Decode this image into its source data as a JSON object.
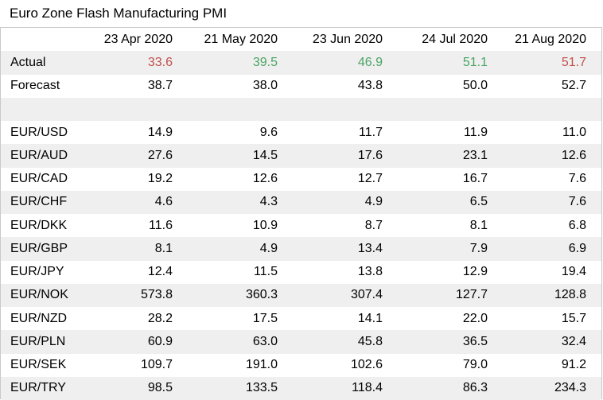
{
  "title": "Euro Zone Flash Manufacturing PMI",
  "colors": {
    "down": "#c0504d",
    "up": "#4aa564"
  },
  "chart_data": {
    "type": "table",
    "columns": [
      "23 Apr 2020",
      "21 May 2020",
      "23 Jun 2020",
      "24 Jul 2020",
      "21 Aug 2020"
    ],
    "actual": {
      "label": "Actual",
      "values": [
        "33.6",
        "39.5",
        "46.9",
        "51.1",
        "51.7"
      ],
      "colors": [
        "down",
        "up",
        "up",
        "up",
        "down"
      ]
    },
    "forecast": {
      "label": "Forecast",
      "values": [
        "38.7",
        "38.0",
        "43.8",
        "50.0",
        "52.7"
      ]
    },
    "pairs": [
      {
        "label": "EUR/USD",
        "values": [
          "14.9",
          "9.6",
          "11.7",
          "11.9",
          "11.0"
        ]
      },
      {
        "label": "EUR/AUD",
        "values": [
          "27.6",
          "14.5",
          "17.6",
          "23.1",
          "12.6"
        ]
      },
      {
        "label": "EUR/CAD",
        "values": [
          "19.2",
          "12.6",
          "12.7",
          "16.7",
          "7.6"
        ]
      },
      {
        "label": "EUR/CHF",
        "values": [
          "4.6",
          "4.3",
          "4.9",
          "6.5",
          "7.6"
        ]
      },
      {
        "label": "EUR/DKK",
        "values": [
          "11.6",
          "10.9",
          "8.7",
          "8.1",
          "6.8"
        ]
      },
      {
        "label": "EUR/GBP",
        "values": [
          "8.1",
          "4.9",
          "13.4",
          "7.9",
          "6.9"
        ]
      },
      {
        "label": "EUR/JPY",
        "values": [
          "12.4",
          "11.5",
          "13.8",
          "12.9",
          "19.4"
        ]
      },
      {
        "label": "EUR/NOK",
        "values": [
          "573.8",
          "360.3",
          "307.4",
          "127.7",
          "128.8"
        ]
      },
      {
        "label": "EUR/NZD",
        "values": [
          "28.2",
          "17.5",
          "14.1",
          "22.0",
          "15.7"
        ]
      },
      {
        "label": "EUR/PLN",
        "values": [
          "60.9",
          "63.0",
          "45.8",
          "36.5",
          "32.4"
        ]
      },
      {
        "label": "EUR/SEK",
        "values": [
          "109.7",
          "191.0",
          "102.6",
          "79.0",
          "91.2"
        ]
      },
      {
        "label": "EUR/TRY",
        "values": [
          "98.5",
          "133.5",
          "118.4",
          "86.3",
          "234.3"
        ]
      }
    ]
  }
}
